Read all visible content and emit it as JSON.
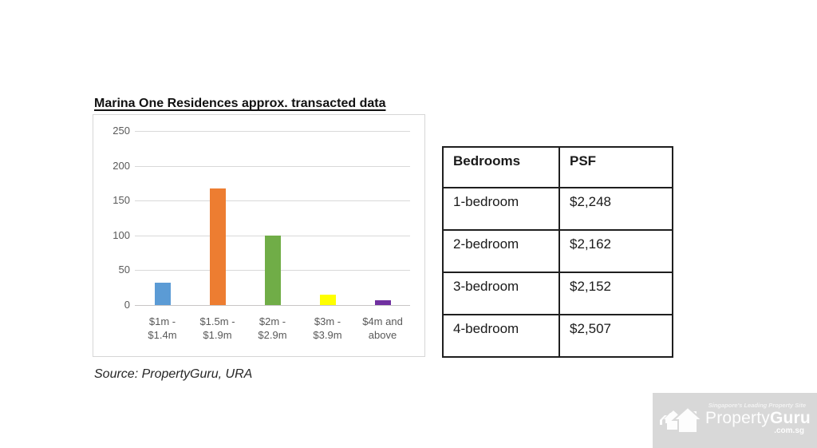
{
  "title": "Marina One Residences approx. transacted data",
  "source_note": "Source: PropertyGuru, URA",
  "chart_data": {
    "type": "bar",
    "title": "Marina One Residences approx. transacted data",
    "categories": [
      "$1m -\n$1.4m",
      "$1.5m -\n$1.9m",
      "$2m -\n$2.9m",
      "$3m -\n$3.9m",
      "$4m and\nabove"
    ],
    "values": [
      32,
      167,
      100,
      15,
      7
    ],
    "bar_colors": [
      "#5b9bd5",
      "#ed7d31",
      "#70ad47",
      "#ffff00",
      "#7030a0"
    ],
    "xlabel": "",
    "ylabel": "",
    "ylim": [
      0,
      250
    ],
    "yticks": [
      0,
      50,
      100,
      150,
      200,
      250
    ],
    "grid": true,
    "legend": false
  },
  "table": {
    "headers": [
      "Bedrooms",
      "PSF"
    ],
    "rows": [
      [
        "1-bedroom",
        "$2,248"
      ],
      [
        "2-bedroom",
        "$2,162"
      ],
      [
        "3-bedroom",
        "$2,152"
      ],
      [
        "4-bedroom",
        "$2,507"
      ]
    ]
  },
  "logo": {
    "tagline": "Singapore's Leading Property Site",
    "brand_property": "Property",
    "brand_guru": "Guru",
    "domain": ".com.sg"
  },
  "colors": {
    "gridline": "#d9d9d9",
    "axis_text": "#595959",
    "chart_border": "#d6d6d6",
    "table_border": "#1f1f1f",
    "logo_background": "#d8d8d8",
    "logo_text": "#fdfdfd"
  }
}
